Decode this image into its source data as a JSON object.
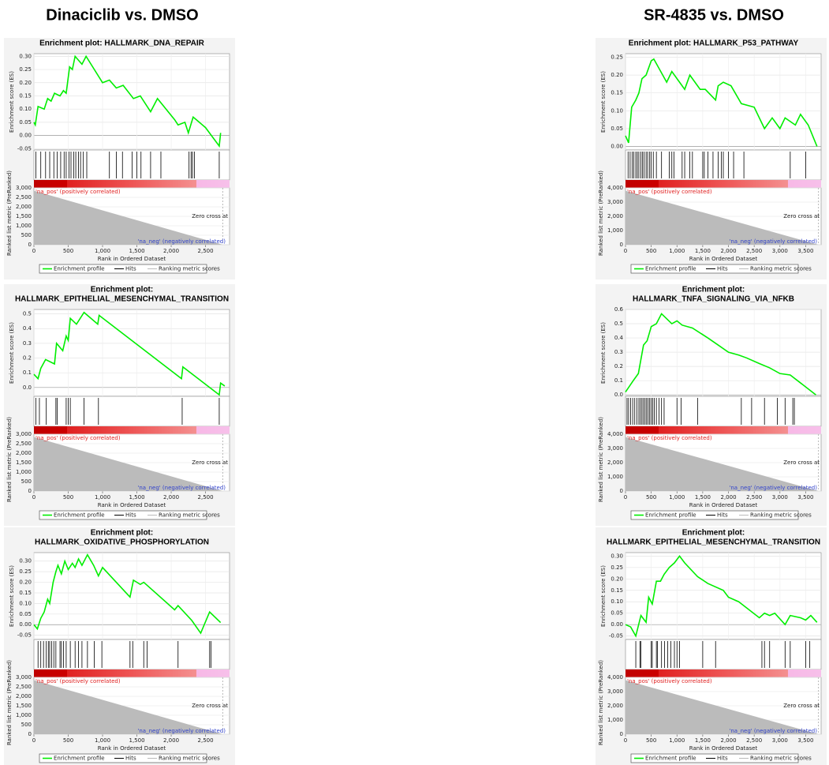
{
  "headings": [
    "Dinaciclib vs. DMSO",
    "SR-4835 vs. DMSO"
  ],
  "chart_data": [
    {
      "type": "gsea",
      "title": [
        "Enrichment plot: HALLMARK_DNA_REPAIR"
      ],
      "y_label": "Enrichment score (ES)",
      "metric_label": "Ranked list metric (PreRanked)",
      "x_label": "Rank in Ordered Dataset",
      "pos_label": "'na_pos' (positively correlated)",
      "neg_label": "'na_neg' (negatively correlated)",
      "zero_cross_label": "Zero cross at",
      "legend": [
        {
          "name": "Enrichment profile",
          "color": "#00ee00"
        },
        {
          "name": "Hits",
          "color": "#000000"
        },
        {
          "name": "Ranking metric scores",
          "color": "#bbbbbb"
        }
      ],
      "x": [
        0,
        20,
        60,
        150,
        200,
        250,
        300,
        380,
        430,
        470,
        520,
        560,
        600,
        700,
        760,
        1000,
        1100,
        1200,
        1300,
        1450,
        1550,
        1700,
        1800,
        2050,
        2100,
        2200,
        2250,
        2320,
        2500,
        2700,
        2720
      ],
      "values": [
        0.05,
        0.04,
        0.11,
        0.1,
        0.14,
        0.13,
        0.16,
        0.15,
        0.17,
        0.16,
        0.26,
        0.25,
        0.3,
        0.27,
        0.3,
        0.2,
        0.21,
        0.18,
        0.19,
        0.14,
        0.15,
        0.09,
        0.14,
        0.06,
        0.04,
        0.05,
        0.01,
        0.07,
        0.03,
        -0.04,
        0.01
      ],
      "hits": [
        30,
        100,
        170,
        230,
        290,
        340,
        390,
        440,
        470,
        510,
        540,
        580,
        610,
        650,
        680,
        720,
        770,
        1100,
        1200,
        1290,
        1430,
        1500,
        1560,
        1700,
        1850,
        2260,
        2290,
        2310,
        2340,
        2700
      ],
      "xlim": [
        0,
        2850
      ],
      "xticks": [
        0,
        500,
        {
          "value": 1000,
          "label": "1,000"
        },
        {
          "value": 1500,
          "label": "1,500"
        },
        {
          "value": 2000,
          "label": "2,000"
        },
        {
          "value": 2500,
          "label": "2,500"
        }
      ],
      "ylim": [
        -0.055,
        0.31
      ],
      "yticks": [
        {
          "value": 0.3,
          "label": "0.30"
        },
        0.25,
        {
          "value": 0.2,
          "label": "0.20"
        },
        0.15,
        {
          "value": 0.1,
          "label": "0.10"
        },
        0.05,
        {
          "value": 0,
          "label": "0.00"
        },
        -0.05
      ],
      "metric": {
        "x": [
          0,
          2750
        ],
        "values": [
          2850,
          0
        ],
        "ylim": [
          0,
          3000
        ],
        "yticks": [
          0,
          500,
          {
            "value": 1000,
            "label": "1,000"
          },
          {
            "value": 1500,
            "label": "1,500"
          },
          {
            "value": 2000,
            "label": "2,000"
          },
          {
            "value": 2500,
            "label": "2,500"
          },
          {
            "value": 3000,
            "label": "3,000"
          }
        ]
      }
    },
    {
      "type": "gsea",
      "title": [
        "Enrichment plot:",
        "HALLMARK_EPITHELIAL_MESENCHYMAL_TRANSITION"
      ],
      "y_label": "Enrichment score (ES)",
      "metric_label": "Ranked list metric (PreRanked)",
      "x_label": "Rank in Ordered Dataset",
      "pos_label": "'na_pos' (positively correlated)",
      "neg_label": "'na_neg' (negatively correlated)",
      "zero_cross_label": "Zero cross at",
      "legend": [
        {
          "name": "Enrichment profile",
          "color": "#00ee00"
        },
        {
          "name": "Hits",
          "color": "#000000"
        },
        {
          "name": "Ranking metric scores",
          "color": "#bbbbbb"
        }
      ],
      "x": [
        0,
        60,
        100,
        170,
        300,
        330,
        420,
        470,
        500,
        530,
        620,
        730,
        930,
        950,
        2150,
        2170,
        2700,
        2720,
        2780
      ],
      "values": [
        0.09,
        0.06,
        0.13,
        0.19,
        0.16,
        0.3,
        0.25,
        0.35,
        0.32,
        0.47,
        0.43,
        0.51,
        0.43,
        0.49,
        0.06,
        0.14,
        -0.05,
        0.03,
        0.01
      ],
      "hits": [
        30,
        80,
        180,
        320,
        340,
        470,
        500,
        530,
        730,
        940,
        2160,
        2700
      ],
      "xlim": [
        0,
        2850
      ],
      "xticks": [
        0,
        500,
        {
          "value": 1000,
          "label": "1,000"
        },
        {
          "value": 1500,
          "label": "1,500"
        },
        {
          "value": 2000,
          "label": "2,000"
        },
        {
          "value": 2500,
          "label": "2,500"
        }
      ],
      "ylim": [
        -0.06,
        0.53
      ],
      "yticks": [
        0.5,
        0.4,
        0.3,
        0.2,
        0.1,
        {
          "value": 0,
          "label": "0.0"
        }
      ],
      "metric": {
        "x": [
          0,
          2750
        ],
        "values": [
          2850,
          0
        ],
        "ylim": [
          0,
          3000
        ],
        "yticks": [
          0,
          500,
          {
            "value": 1000,
            "label": "1,000"
          },
          {
            "value": 1500,
            "label": "1,500"
          },
          {
            "value": 2000,
            "label": "2,000"
          },
          {
            "value": 2500,
            "label": "2,500"
          },
          {
            "value": 3000,
            "label": "3,000"
          }
        ]
      }
    },
    {
      "type": "gsea",
      "title": [
        "Enrichment plot:",
        "HALLMARK_OXIDATIVE_PHOSPHORYLATION"
      ],
      "y_label": "Enrichment score (ES)",
      "metric_label": "Ranked list metric (PreRanked)",
      "x_label": "Rank in Ordered Dataset",
      "pos_label": "'na_pos' (positively correlated)",
      "neg_label": "'na_neg' (negatively correlated)",
      "zero_cross_label": "Zero cross at",
      "legend": [
        {
          "name": "Enrichment profile",
          "color": "#00ee00"
        },
        {
          "name": "Hits",
          "color": "#000000"
        },
        {
          "name": "Ranking metric scores",
          "color": "#bbbbbb"
        }
      ],
      "x": [
        0,
        50,
        100,
        150,
        200,
        230,
        280,
        320,
        350,
        400,
        450,
        500,
        560,
        600,
        650,
        700,
        780,
        870,
        940,
        1000,
        1400,
        1450,
        1550,
        1600,
        2050,
        2100,
        2300,
        2430,
        2560,
        2720
      ],
      "values": [
        0,
        -0.02,
        0.03,
        0.06,
        0.12,
        0.1,
        0.2,
        0.25,
        0.28,
        0.24,
        0.3,
        0.26,
        0.29,
        0.27,
        0.31,
        0.28,
        0.33,
        0.28,
        0.23,
        0.27,
        0.13,
        0.21,
        0.19,
        0.2,
        0.07,
        0.09,
        0.02,
        -0.04,
        0.06,
        0.01
      ],
      "hits": [
        60,
        100,
        140,
        180,
        210,
        230,
        260,
        290,
        320,
        380,
        400,
        430,
        470,
        530,
        600,
        650,
        700,
        780,
        880,
        990,
        1400,
        1440,
        1600,
        1650,
        2100,
        2560,
        2580
      ],
      "xlim": [
        0,
        2850
      ],
      "xticks": [
        0,
        500,
        {
          "value": 1000,
          "label": "1,000"
        },
        {
          "value": 1500,
          "label": "1,500"
        },
        {
          "value": 2000,
          "label": "2,000"
        },
        {
          "value": 2500,
          "label": "2,500"
        }
      ],
      "ylim": [
        -0.07,
        0.34
      ],
      "yticks": [
        {
          "value": 0.3,
          "label": "0.30"
        },
        0.25,
        {
          "value": 0.2,
          "label": "0.20"
        },
        0.15,
        {
          "value": 0.1,
          "label": "0.10"
        },
        0.05,
        {
          "value": 0,
          "label": "0.00"
        },
        -0.05
      ],
      "metric": {
        "x": [
          0,
          2750
        ],
        "values": [
          2850,
          0
        ],
        "ylim": [
          0,
          3000
        ],
        "yticks": [
          0,
          500,
          {
            "value": 1000,
            "label": "1,000"
          },
          {
            "value": 1500,
            "label": "1,500"
          },
          {
            "value": 2000,
            "label": "2,000"
          },
          {
            "value": 2500,
            "label": "2,500"
          },
          {
            "value": 3000,
            "label": "3,000"
          }
        ]
      }
    },
    {
      "type": "gsea",
      "title": [
        "Enrichment plot: HALLMARK_P53_PATHWAY"
      ],
      "y_label": "Enrichment score (ES)",
      "metric_label": "Ranked list metric (PreRanked)",
      "x_label": "Rank in Ordered Dataset",
      "pos_label": "'na_pos' (positively correlated)",
      "neg_label": "'na_neg' (negatively correlated)",
      "zero_cross_label": "Zero cross at",
      "legend": [
        {
          "name": "Enrichment profile",
          "color": "#00ee00"
        },
        {
          "name": "Hits",
          "color": "#000000"
        },
        {
          "name": "Ranking metric scores",
          "color": "#bbbbbb"
        }
      ],
      "x": [
        0,
        60,
        120,
        200,
        260,
        320,
        400,
        450,
        500,
        550,
        800,
        900,
        1050,
        1150,
        1250,
        1450,
        1550,
        1750,
        1800,
        1900,
        2050,
        2250,
        2500,
        2700,
        2850,
        3000,
        3100,
        3300,
        3400,
        3550,
        3720
      ],
      "values": [
        0.03,
        0.01,
        0.11,
        0.13,
        0.15,
        0.19,
        0.2,
        0.22,
        0.24,
        0.245,
        0.18,
        0.21,
        0.18,
        0.16,
        0.2,
        0.16,
        0.16,
        0.13,
        0.17,
        0.18,
        0.17,
        0.12,
        0.11,
        0.05,
        0.08,
        0.05,
        0.08,
        0.06,
        0.09,
        0.06,
        0
      ],
      "hits": [
        50,
        90,
        130,
        160,
        200,
        230,
        260,
        300,
        330,
        360,
        400,
        430,
        470,
        500,
        540,
        600,
        700,
        850,
        900,
        940,
        1100,
        1150,
        1250,
        1300,
        1500,
        1530,
        1600,
        1700,
        1800,
        1860,
        1900,
        2000,
        2100,
        2300,
        3200,
        3500
      ],
      "xlim": [
        0,
        3800
      ],
      "xticks": [
        0,
        500,
        {
          "value": 1000,
          "label": "1,000"
        },
        {
          "value": 1500,
          "label": "1,500"
        },
        {
          "value": 2000,
          "label": "2,000"
        },
        {
          "value": 2500,
          "label": "2,500"
        },
        {
          "value": 3000,
          "label": "3,000"
        },
        {
          "value": 3500,
          "label": "3,500"
        }
      ],
      "ylim": [
        -0.01,
        0.26
      ],
      "yticks": [
        0.25,
        {
          "value": 0.2,
          "label": "0.20"
        },
        0.15,
        {
          "value": 0.1,
          "label": "0.10"
        },
        0.05,
        {
          "value": 0,
          "label": "0.00"
        }
      ],
      "metric": {
        "x": [
          0,
          3750
        ],
        "values": [
          3800,
          0
        ],
        "ylim": [
          0,
          4000
        ],
        "yticks": [
          0,
          {
            "value": 1000,
            "label": "1,000"
          },
          {
            "value": 2000,
            "label": "2,000"
          },
          {
            "value": 3000,
            "label": "3,000"
          },
          {
            "value": 4000,
            "label": "4,000"
          }
        ]
      }
    },
    {
      "type": "gsea",
      "title": [
        "Enrichment plot:",
        "HALLMARK_TNFA_SIGNALING_VIA_NFKB"
      ],
      "y_label": "Enrichment score (ES)",
      "metric_label": "Ranked list metric (PreRanked)",
      "x_label": "Rank in Ordered Dataset",
      "pos_label": "'na_pos' (positively correlated)",
      "neg_label": "'na_neg' (negatively correlated)",
      "zero_cross_label": "Zero cross at",
      "legend": [
        {
          "name": "Enrichment profile",
          "color": "#00ee00"
        },
        {
          "name": "Hits",
          "color": "#000000"
        },
        {
          "name": "Ranking metric scores",
          "color": "#bbbbbb"
        }
      ],
      "x": [
        0,
        150,
        250,
        350,
        420,
        500,
        600,
        700,
        900,
        1000,
        1100,
        1300,
        1600,
        1800,
        2000,
        2200,
        2350,
        2600,
        2800,
        3000,
        3200,
        3700
      ],
      "values": [
        0.02,
        0.1,
        0.15,
        0.35,
        0.38,
        0.48,
        0.5,
        0.57,
        0.5,
        0.52,
        0.49,
        0.47,
        0.4,
        0.35,
        0.3,
        0.28,
        0.26,
        0.22,
        0.19,
        0.15,
        0.14,
        0
      ],
      "hits": [
        30,
        60,
        100,
        140,
        180,
        220,
        260,
        290,
        320,
        350,
        380,
        410,
        440,
        470,
        500,
        530,
        560,
        600,
        650,
        700,
        750,
        1000,
        1080,
        1400,
        2250,
        2450,
        2700,
        2950,
        3100,
        3250,
        3280
      ],
      "xlim": [
        0,
        3800
      ],
      "xticks": [
        0,
        500,
        {
          "value": 1000,
          "label": "1,000"
        },
        {
          "value": 1500,
          "label": "1,500"
        },
        {
          "value": 2000,
          "label": "2,000"
        },
        {
          "value": 2500,
          "label": "2,500"
        },
        {
          "value": 3000,
          "label": "3,000"
        },
        {
          "value": 3500,
          "label": "3,500"
        }
      ],
      "ylim": [
        -0.01,
        0.6
      ],
      "yticks": [
        0.6,
        0.5,
        0.4,
        0.3,
        0.2,
        0.1,
        {
          "value": 0,
          "label": "0.0"
        }
      ],
      "metric": {
        "x": [
          0,
          3750
        ],
        "values": [
          3800,
          0
        ],
        "ylim": [
          0,
          4000
        ],
        "yticks": [
          0,
          {
            "value": 1000,
            "label": "1,000"
          },
          {
            "value": 2000,
            "label": "2,000"
          },
          {
            "value": 3000,
            "label": "3,000"
          },
          {
            "value": 4000,
            "label": "4,000"
          }
        ]
      }
    },
    {
      "type": "gsea",
      "title": [
        "Enrichment plot:",
        "HALLMARK_EPITHELIAL_MESENCHYMAL_TRANSITION"
      ],
      "y_label": "Enrichment score (ES)",
      "metric_label": "Ranked list metric (PreRanked)",
      "x_label": "Rank in Ordered Dataset",
      "pos_label": "'na_pos' (positively correlated)",
      "neg_label": "'na_neg' (negatively correlated)",
      "zero_cross_label": "Zero cross at",
      "legend": [
        {
          "name": "Enrichment profile",
          "color": "#00ee00"
        },
        {
          "name": "Hits",
          "color": "#000000"
        },
        {
          "name": "Ranking metric scores",
          "color": "#bbbbbb"
        }
      ],
      "x": [
        0,
        100,
        200,
        300,
        400,
        450,
        520,
        600,
        680,
        750,
        850,
        950,
        1050,
        1150,
        1400,
        1600,
        1900,
        2000,
        2200,
        2600,
        2700,
        2800,
        2900,
        3100,
        3200,
        3400,
        3500,
        3600,
        3720
      ],
      "values": [
        0,
        -0.01,
        -0.05,
        0.04,
        0.01,
        0.12,
        0.09,
        0.19,
        0.19,
        0.22,
        0.25,
        0.27,
        0.3,
        0.27,
        0.21,
        0.18,
        0.15,
        0.12,
        0.1,
        0.03,
        0.05,
        0.04,
        0.05,
        0,
        0.04,
        0.03,
        0.02,
        0.04,
        0.01
      ],
      "hits": [
        200,
        280,
        300,
        500,
        520,
        600,
        620,
        700,
        760,
        820,
        880,
        950,
        1000,
        1050,
        1500,
        1750,
        2650,
        2700,
        2800,
        3100,
        3200,
        3500,
        3580
      ],
      "xlim": [
        0,
        3800
      ],
      "xticks": [
        0,
        500,
        {
          "value": 1000,
          "label": "1,000"
        },
        {
          "value": 1500,
          "label": "1,500"
        },
        {
          "value": 2000,
          "label": "2,000"
        },
        {
          "value": 2500,
          "label": "2,500"
        },
        {
          "value": 3000,
          "label": "3,000"
        },
        {
          "value": 3500,
          "label": "3,500"
        }
      ],
      "ylim": [
        -0.065,
        0.315
      ],
      "yticks": [
        {
          "value": 0.3,
          "label": "0.30"
        },
        0.25,
        {
          "value": 0.2,
          "label": "0.20"
        },
        0.15,
        {
          "value": 0.1,
          "label": "0.10"
        },
        0.05,
        {
          "value": 0,
          "label": "0.00"
        },
        -0.05
      ],
      "metric": {
        "x": [
          0,
          3750
        ],
        "values": [
          3800,
          0
        ],
        "ylim": [
          0,
          4000
        ],
        "yticks": [
          0,
          {
            "value": 1000,
            "label": "1,000"
          },
          {
            "value": 2000,
            "label": "2,000"
          },
          {
            "value": 3000,
            "label": "3,000"
          },
          {
            "value": 4000,
            "label": "4,000"
          }
        ]
      }
    }
  ]
}
